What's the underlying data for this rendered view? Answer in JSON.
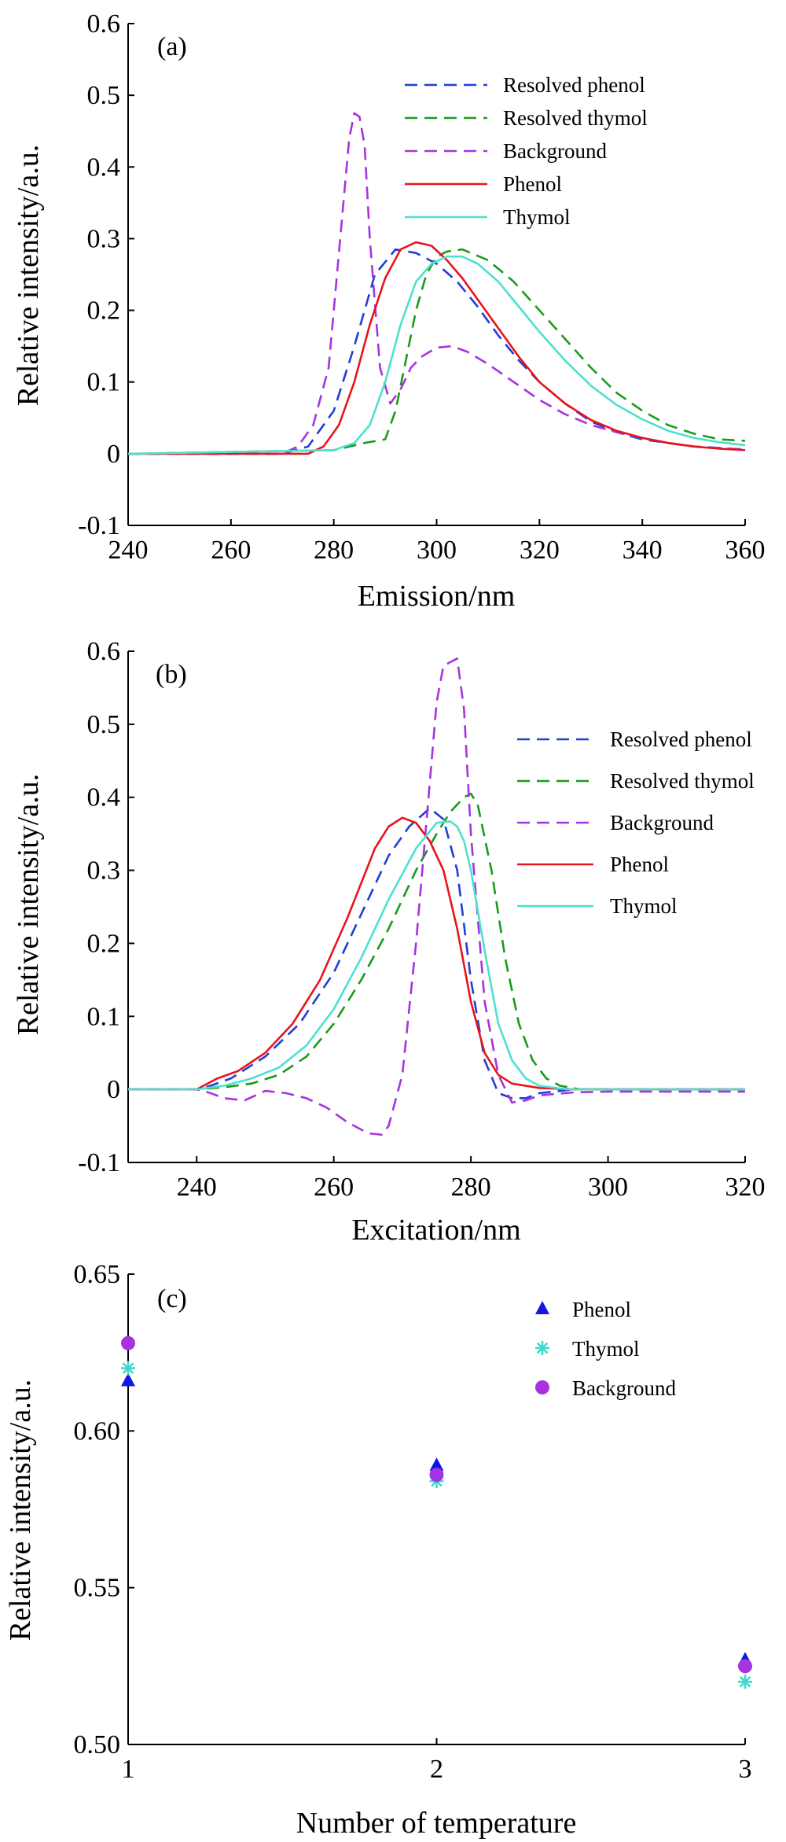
{
  "colors": {
    "resolved_phenol": "#1f3fd6",
    "resolved_thymol": "#1a9a1a",
    "background": "#a633e0",
    "phenol": "#e8141c",
    "thymol": "#4de0d0",
    "phenol_marker": "#1515e6",
    "thymol_marker": "#3fd8cf",
    "background_marker": "#a633e0"
  },
  "chart_data": [
    {
      "type": "line",
      "panel_label": "(a)",
      "xlabel": "Emission/nm",
      "ylabel": "Relative intensity/a.u.",
      "xlim": [
        240,
        360
      ],
      "ylim": [
        -0.1,
        0.6
      ],
      "xticks": [
        "240",
        "260",
        "280",
        "300",
        "320",
        "340",
        "360"
      ],
      "yticks": [
        "-0.1",
        "0",
        "0.1",
        "0.2",
        "0.3",
        "0.4",
        "0.5",
        "0.6"
      ],
      "xtick_values": [
        240,
        260,
        280,
        300,
        320,
        340,
        360
      ],
      "ytick_values": [
        -0.1,
        0,
        0.1,
        0.2,
        0.3,
        0.4,
        0.5,
        0.6
      ],
      "legend_position": "top-right",
      "series": [
        {
          "name": "Resolved phenol",
          "color_key": "resolved_phenol",
          "dash": true,
          "x": [
            240,
            270,
            275,
            280,
            284,
            288,
            292,
            296,
            300,
            304,
            308,
            312,
            316,
            320,
            325,
            330,
            335,
            340,
            345,
            350,
            355,
            360
          ],
          "y": [
            0,
            0,
            0.01,
            0.06,
            0.15,
            0.25,
            0.285,
            0.28,
            0.265,
            0.24,
            0.205,
            0.165,
            0.13,
            0.1,
            0.07,
            0.045,
            0.03,
            0.02,
            0.015,
            0.01,
            0.008,
            0.005
          ]
        },
        {
          "name": "Resolved thymol",
          "color_key": "resolved_thymol",
          "dash": true,
          "x": [
            240,
            280,
            286,
            290,
            292,
            294,
            296,
            298,
            300,
            302,
            305,
            310,
            315,
            320,
            325,
            330,
            335,
            340,
            345,
            350,
            355,
            360
          ],
          "y": [
            0,
            0.005,
            0.015,
            0.02,
            0.06,
            0.13,
            0.2,
            0.25,
            0.275,
            0.282,
            0.285,
            0.27,
            0.24,
            0.2,
            0.16,
            0.12,
            0.085,
            0.06,
            0.04,
            0.028,
            0.02,
            0.018
          ]
        },
        {
          "name": "Background",
          "color_key": "background",
          "dash": true,
          "x": [
            240,
            270,
            273,
            276,
            279,
            281,
            283,
            284,
            285,
            286,
            287,
            289,
            291,
            293,
            295,
            297,
            300,
            303,
            306,
            310,
            315,
            320,
            325,
            330,
            335,
            340,
            345,
            350,
            355,
            360
          ],
          "y": [
            0,
            0,
            0.01,
            0.04,
            0.12,
            0.28,
            0.44,
            0.475,
            0.47,
            0.43,
            0.3,
            0.12,
            0.07,
            0.09,
            0.12,
            0.135,
            0.148,
            0.15,
            0.142,
            0.125,
            0.1,
            0.075,
            0.055,
            0.04,
            0.03,
            0.022,
            0.015,
            0.01,
            0.008,
            0.006
          ]
        },
        {
          "name": "Phenol",
          "color_key": "phenol",
          "dash": false,
          "x": [
            240,
            275,
            278,
            281,
            284,
            287,
            290,
            293,
            296,
            299,
            302,
            305,
            308,
            312,
            316,
            320,
            325,
            330,
            335,
            340,
            345,
            350,
            355,
            360
          ],
          "y": [
            0,
            0,
            0.01,
            0.04,
            0.1,
            0.18,
            0.245,
            0.285,
            0.295,
            0.29,
            0.27,
            0.245,
            0.215,
            0.175,
            0.135,
            0.1,
            0.07,
            0.047,
            0.032,
            0.022,
            0.015,
            0.01,
            0.007,
            0.005
          ]
        },
        {
          "name": "Thymol",
          "color_key": "thymol",
          "dash": false,
          "x": [
            240,
            280,
            284,
            287,
            290,
            293,
            296,
            299,
            302,
            305,
            308,
            312,
            316,
            320,
            325,
            330,
            335,
            340,
            345,
            350,
            355,
            360
          ],
          "y": [
            0,
            0.005,
            0.015,
            0.04,
            0.1,
            0.18,
            0.24,
            0.265,
            0.275,
            0.275,
            0.265,
            0.24,
            0.205,
            0.17,
            0.13,
            0.095,
            0.068,
            0.048,
            0.032,
            0.022,
            0.016,
            0.012
          ]
        }
      ]
    },
    {
      "type": "line",
      "panel_label": "(b)",
      "xlabel": "Excitation/nm",
      "ylabel": "Relative intensity/a.u.",
      "xlim": [
        230,
        320
      ],
      "ylim": [
        -0.1,
        0.6
      ],
      "xticks": [
        "240",
        "260",
        "280",
        "300",
        "320"
      ],
      "yticks": [
        "-0.1",
        "0",
        "0.1",
        "0.2",
        "0.3",
        "0.4",
        "0.5",
        "0.6"
      ],
      "xtick_values": [
        240,
        260,
        280,
        300,
        320
      ],
      "ytick_values": [
        -0.1,
        0,
        0.1,
        0.2,
        0.3,
        0.4,
        0.5,
        0.6
      ],
      "legend_position": "top-right",
      "series": [
        {
          "name": "Resolved phenol",
          "color_key": "resolved_phenol",
          "dash": true,
          "x": [
            230,
            240,
            242,
            245,
            250,
            255,
            260,
            264,
            268,
            271,
            274,
            276,
            278,
            280,
            282,
            284,
            286,
            288,
            290,
            295,
            320
          ],
          "y": [
            0,
            0,
            0.005,
            0.015,
            0.045,
            0.09,
            0.16,
            0.24,
            0.32,
            0.36,
            0.385,
            0.37,
            0.3,
            0.15,
            0.04,
            -0.005,
            -0.012,
            -0.012,
            -0.005,
            0,
            0
          ]
        },
        {
          "name": "Resolved thymol",
          "color_key": "resolved_thymol",
          "dash": true,
          "x": [
            230,
            240,
            244,
            248,
            252,
            256,
            260,
            264,
            268,
            272,
            275,
            277,
            279,
            280,
            281,
            283,
            285,
            287,
            289,
            291,
            293,
            296,
            320
          ],
          "y": [
            0,
            0,
            0.003,
            0.008,
            0.02,
            0.045,
            0.09,
            0.15,
            0.22,
            0.3,
            0.35,
            0.38,
            0.4,
            0.405,
            0.39,
            0.3,
            0.18,
            0.09,
            0.04,
            0.015,
            0.005,
            0,
            0
          ]
        },
        {
          "name": "Background",
          "color_key": "background",
          "dash": true,
          "x": [
            230,
            240,
            242,
            244,
            247,
            250,
            253,
            256,
            259,
            262,
            265,
            267,
            268,
            270,
            272,
            274,
            275,
            276,
            277,
            278,
            279,
            280,
            282,
            284,
            286,
            288,
            290,
            295,
            300,
            320
          ],
          "y": [
            0,
            0,
            -0.005,
            -0.012,
            -0.015,
            -0.002,
            -0.005,
            -0.012,
            -0.025,
            -0.045,
            -0.06,
            -0.062,
            -0.05,
            0.02,
            0.2,
            0.42,
            0.53,
            0.58,
            0.585,
            0.59,
            0.52,
            0.35,
            0.12,
            0.02,
            -0.018,
            -0.015,
            -0.008,
            -0.004,
            -0.003,
            -0.003
          ]
        },
        {
          "name": "Phenol",
          "color_key": "phenol",
          "dash": false,
          "x": [
            230,
            240,
            243,
            246,
            250,
            254,
            258,
            262,
            266,
            268,
            270,
            272,
            274,
            276,
            278,
            280,
            282,
            284,
            286,
            290,
            295,
            320
          ],
          "y": [
            0,
            0,
            0.015,
            0.025,
            0.05,
            0.09,
            0.15,
            0.235,
            0.33,
            0.36,
            0.372,
            0.365,
            0.34,
            0.3,
            0.22,
            0.12,
            0.05,
            0.02,
            0.008,
            0.002,
            0,
            0
          ]
        },
        {
          "name": "Thymol",
          "color_key": "thymol",
          "dash": false,
          "x": [
            230,
            240,
            244,
            248,
            252,
            256,
            260,
            264,
            268,
            272,
            275,
            277,
            278,
            279,
            280,
            282,
            284,
            286,
            288,
            290,
            294,
            320
          ],
          "y": [
            0,
            0,
            0.005,
            0.015,
            0.03,
            0.06,
            0.11,
            0.18,
            0.26,
            0.33,
            0.365,
            0.367,
            0.36,
            0.34,
            0.3,
            0.19,
            0.09,
            0.04,
            0.015,
            0.005,
            0,
            0
          ]
        }
      ]
    },
    {
      "type": "scatter",
      "panel_label": "(c)",
      "xlabel": "Number of temperature",
      "ylabel": "Relative intensity/a.u.",
      "xlim": [
        1,
        3
      ],
      "ylim": [
        0.5,
        0.65
      ],
      "xticks": [
        "1",
        "2",
        "3"
      ],
      "yticks": [
        "0.50",
        "0.55",
        "0.60",
        "0.65"
      ],
      "xtick_values": [
        1,
        2,
        3
      ],
      "ytick_values": [
        0.5,
        0.55,
        0.6,
        0.65
      ],
      "legend_position": "top-right",
      "series": [
        {
          "name": "Phenol",
          "color_key": "phenol_marker",
          "marker": "triangle",
          "x": [
            1,
            2,
            3
          ],
          "y": [
            0.616,
            0.589,
            0.527
          ]
        },
        {
          "name": "Thymol",
          "color_key": "thymol_marker",
          "marker": "asterisk",
          "x": [
            1,
            2,
            3
          ],
          "y": [
            0.62,
            0.584,
            0.52
          ]
        },
        {
          "name": "Background",
          "color_key": "background_marker",
          "marker": "circle",
          "x": [
            1,
            2,
            3
          ],
          "y": [
            0.628,
            0.586,
            0.525
          ]
        }
      ]
    }
  ]
}
